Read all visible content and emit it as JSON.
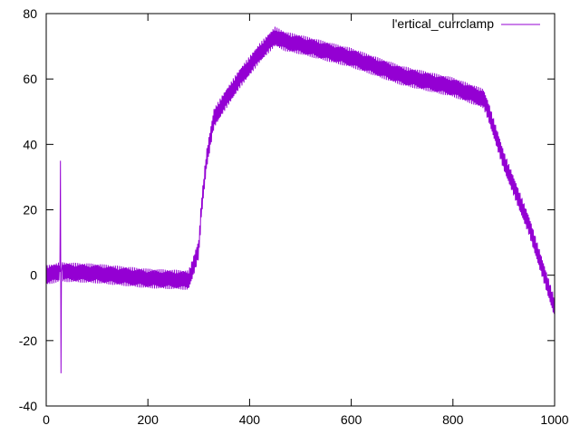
{
  "chart_data": {
    "type": "line",
    "title": "",
    "xlabel": "",
    "ylabel": "",
    "xlim": [
      0,
      1000
    ],
    "ylim": [
      -40,
      80
    ],
    "xticks": [
      0,
      200,
      400,
      600,
      800,
      1000
    ],
    "yticks": [
      -40,
      -20,
      0,
      20,
      40,
      60,
      80
    ],
    "grid": false,
    "legend_position": "top-right",
    "series": [
      {
        "name": "l'ertical_currclamp",
        "color": "#9400d3",
        "noise_amplitude": 3,
        "points": [
          [
            0,
            0
          ],
          [
            27,
            1
          ],
          [
            28,
            35
          ],
          [
            29,
            -30
          ],
          [
            30,
            1
          ],
          [
            100,
            0.5
          ],
          [
            200,
            -1
          ],
          [
            280,
            -1.5
          ],
          [
            290,
            3
          ],
          [
            300,
            8
          ],
          [
            305,
            20
          ],
          [
            315,
            35
          ],
          [
            330,
            48
          ],
          [
            350,
            53
          ],
          [
            380,
            60
          ],
          [
            420,
            68
          ],
          [
            450,
            73
          ],
          [
            470,
            71.5
          ],
          [
            500,
            70.5
          ],
          [
            600,
            66.5
          ],
          [
            700,
            61
          ],
          [
            800,
            57.5
          ],
          [
            860,
            54
          ],
          [
            870,
            50
          ],
          [
            900,
            35
          ],
          [
            950,
            15
          ],
          [
            1000,
            -10
          ]
        ]
      }
    ]
  }
}
